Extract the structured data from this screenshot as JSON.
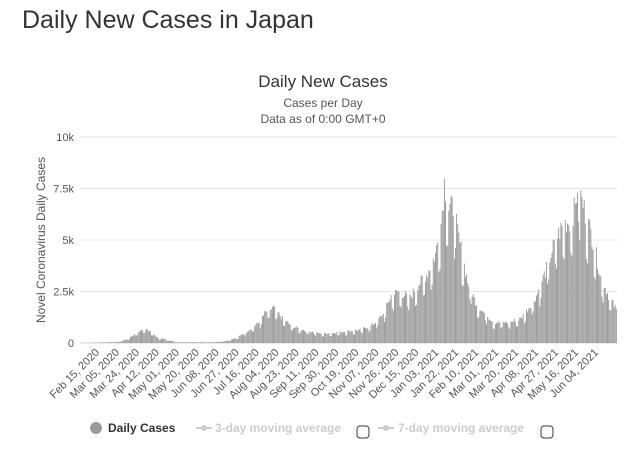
{
  "page_title": "Daily New Cases in Japan",
  "chart_data": {
    "type": "bar",
    "title": "Daily New Cases",
    "subtitle": "Cases per Day",
    "subtitle2": "Data as of 0:00 GMT+0",
    "ylabel": "Novel Coronavirus Daily Cases",
    "xlabel": "",
    "ylim": [
      0,
      10000
    ],
    "yticks": [
      0,
      2500,
      5000,
      7500,
      10000
    ],
    "ytick_labels": [
      "0",
      "2.5k",
      "5k",
      "7.5k",
      "10k"
    ],
    "grid": true,
    "legend_position": "bottom",
    "x_tick_labels": [
      "Feb 15, 2020",
      "Mar 05, 2020",
      "Mar 24, 2020",
      "Apr 12, 2020",
      "May 01, 2020",
      "May 20, 2020",
      "Jun 08, 2020",
      "Jun 27, 2020",
      "Jul 16, 2020",
      "Aug 04, 2020",
      "Aug 23, 2020",
      "Sep 11, 2020",
      "Sep 30, 2020",
      "Oct 19, 2020",
      "Nov 07, 2020",
      "Nov 26, 2020",
      "Dec 15, 2020",
      "Jan 03, 2021",
      "Jan 22, 2021",
      "Feb 10, 2021",
      "Mar 01, 2021",
      "Mar 20, 2021",
      "Apr 08, 2021",
      "Apr 27, 2021",
      "May 16, 2021",
      "Jun 04, 2021"
    ],
    "start_date": "2020-02-15",
    "end_date": "2021-06-12",
    "series": [
      {
        "name": "Daily Cases",
        "color": "#999999",
        "key_points": [
          [
            "2020-02-15",
            0
          ],
          [
            "2020-03-20",
            50
          ],
          [
            "2020-03-29",
            200
          ],
          [
            "2020-04-07",
            550
          ],
          [
            "2020-04-11",
            700
          ],
          [
            "2020-04-17",
            600
          ],
          [
            "2020-04-25",
            250
          ],
          [
            "2020-05-03",
            150
          ],
          [
            "2020-05-12",
            40
          ],
          [
            "2020-06-15",
            40
          ],
          [
            "2020-06-25",
            100
          ],
          [
            "2020-07-05",
            250
          ],
          [
            "2020-07-15",
            600
          ],
          [
            "2020-07-24",
            950
          ],
          [
            "2020-07-31",
            1500
          ],
          [
            "2020-08-07",
            1700
          ],
          [
            "2020-08-15",
            1200
          ],
          [
            "2020-08-24",
            800
          ],
          [
            "2020-09-05",
            600
          ],
          [
            "2020-09-20",
            450
          ],
          [
            "2020-10-10",
            550
          ],
          [
            "2020-10-25",
            650
          ],
          [
            "2020-11-05",
            900
          ],
          [
            "2020-11-14",
            1400
          ],
          [
            "2020-11-21",
            2300
          ],
          [
            "2020-11-28",
            2500
          ],
          [
            "2020-12-08",
            2200
          ],
          [
            "2020-12-15",
            2800
          ],
          [
            "2020-12-24",
            3400
          ],
          [
            "2020-12-31",
            4300
          ],
          [
            "2021-01-05",
            5800
          ],
          [
            "2021-01-08",
            7800
          ],
          [
            "2021-01-12",
            6500
          ],
          [
            "2021-01-16",
            6600
          ],
          [
            "2021-01-22",
            4800
          ],
          [
            "2021-01-29",
            3000
          ],
          [
            "2021-02-05",
            2000
          ],
          [
            "2021-02-12",
            1500
          ],
          [
            "2021-02-22",
            1000
          ],
          [
            "2021-03-08",
            1000
          ],
          [
            "2021-03-18",
            1200
          ],
          [
            "2021-03-25",
            1700
          ],
          [
            "2021-04-01",
            2300
          ],
          [
            "2021-04-10",
            3600
          ],
          [
            "2021-04-18",
            5000
          ],
          [
            "2021-04-26",
            5800
          ],
          [
            "2021-05-01",
            5900
          ],
          [
            "2021-05-06",
            6600
          ],
          [
            "2021-05-08",
            7700
          ],
          [
            "2021-05-14",
            6500
          ],
          [
            "2021-05-22",
            5000
          ],
          [
            "2021-05-29",
            3200
          ],
          [
            "2021-06-05",
            2300
          ],
          [
            "2021-06-12",
            1600
          ]
        ]
      }
    ],
    "legend": [
      {
        "label": "Daily Cases",
        "color": "#999999",
        "active": true
      },
      {
        "label": "3-day moving average",
        "color": "#cccccc",
        "active": false
      },
      {
        "label": "7-day moving average",
        "color": "#cccccc",
        "active": false
      }
    ]
  }
}
